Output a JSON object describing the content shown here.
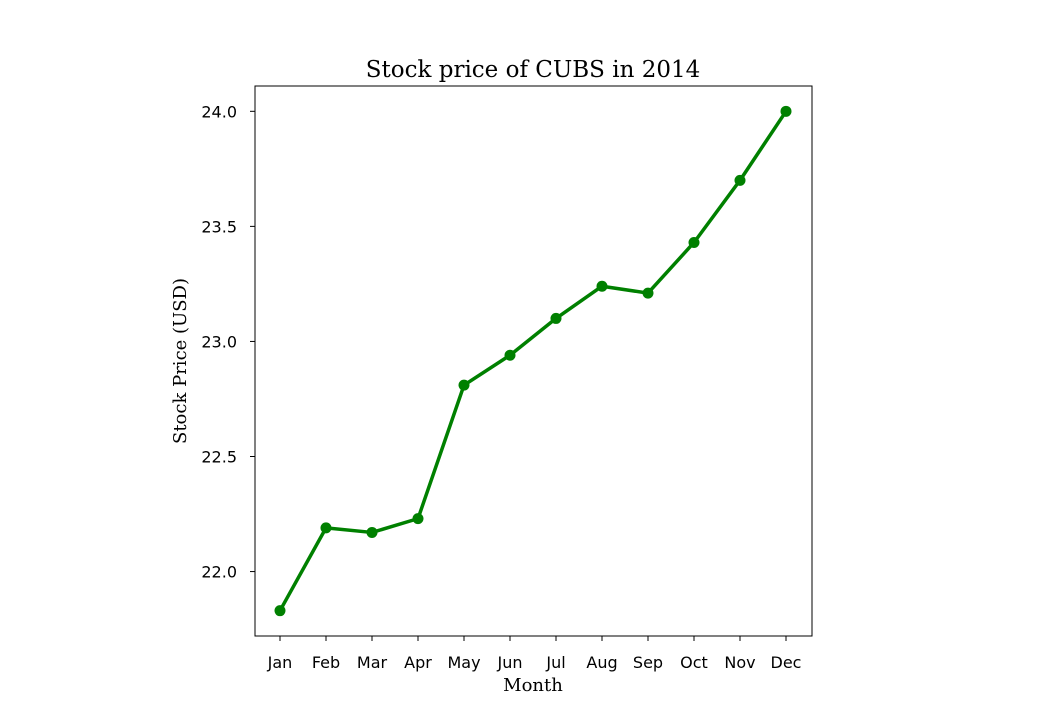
{
  "chart_data": {
    "type": "line",
    "title": "Stock price of CUBS in 2014",
    "xlabel": "Month",
    "ylabel": "Stock Price (USD)",
    "categories": [
      "Jan",
      "Feb",
      "Mar",
      "Apr",
      "May",
      "Jun",
      "Jul",
      "Aug",
      "Sep",
      "Oct",
      "Nov",
      "Dec"
    ],
    "series": [
      {
        "values": [
          21.83,
          22.19,
          22.17,
          22.23,
          22.81,
          22.94,
          23.1,
          23.24,
          23.21,
          23.43,
          23.7,
          24.0
        ]
      }
    ],
    "yticks": [
      22.0,
      22.5,
      23.0,
      23.5,
      24.0
    ],
    "ylim": [
      21.72,
      24.11
    ],
    "line_color": "#008000",
    "marker": "circle",
    "grid": false,
    "legend": false
  }
}
